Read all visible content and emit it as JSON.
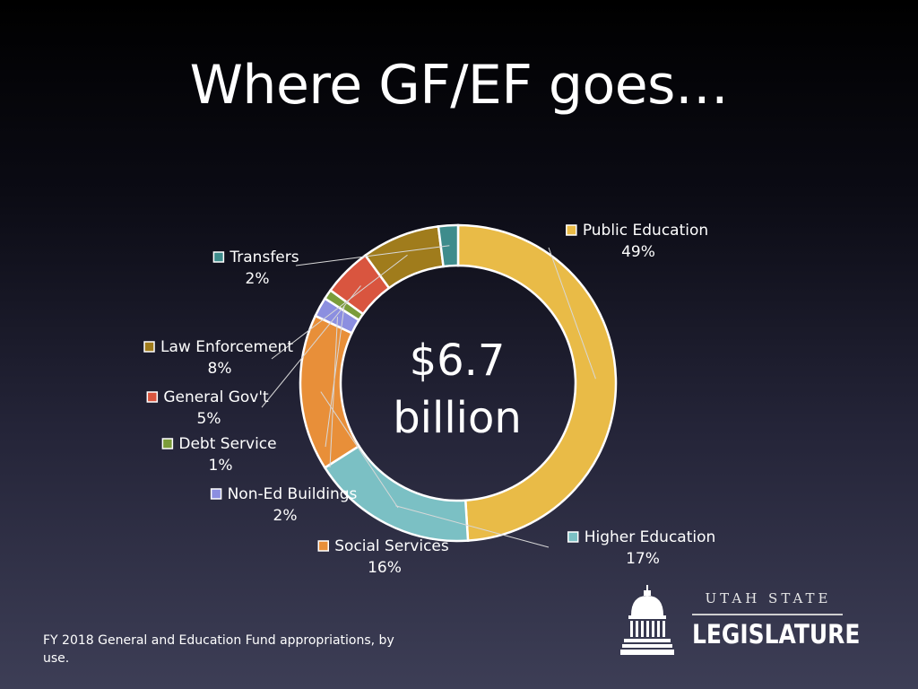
{
  "title": "Where GF/EF goes…",
  "footnote": "FY 2018 General and Education Fund appropriations, by use.",
  "logo": {
    "top_line": "UTAH STATE",
    "main_line": "LEGISLATURE"
  },
  "chart_data": {
    "type": "pie",
    "variant": "donut",
    "center_label": [
      "$6.7",
      "billion"
    ],
    "unit": "%",
    "slices": [
      {
        "name": "Public Education",
        "value": 49,
        "label": "49%",
        "color": "#E9BB47"
      },
      {
        "name": "Higher Education",
        "value": 17,
        "label": "17%",
        "color": "#7BC0C4"
      },
      {
        "name": "Social Services",
        "value": 16,
        "label": "16%",
        "color": "#E88F39"
      },
      {
        "name": "Non-Ed Buildings",
        "value": 2,
        "label": "2%",
        "color": "#8C8FE0"
      },
      {
        "name": "Debt Service",
        "value": 1,
        "label": "1%",
        "color": "#7B9C3A"
      },
      {
        "name": "General Gov't",
        "value": 5,
        "label": "5%",
        "color": "#D9553F"
      },
      {
        "name": "Law Enforcement",
        "value": 8,
        "label": "8%",
        "color": "#A07C1C"
      },
      {
        "name": "Transfers",
        "value": 2,
        "label": "2%",
        "color": "#3E8C8C"
      }
    ],
    "legend": "labels beside slices with leader lines"
  }
}
